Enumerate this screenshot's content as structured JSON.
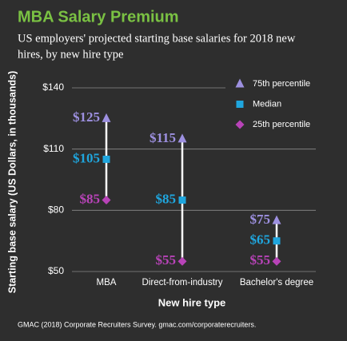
{
  "chart_data": {
    "type": "range-dot",
    "title": "MBA Salary Premium",
    "subtitle": [
      "US employers' projected starting base salaries for 2018 new",
      "hires, by new hire type"
    ],
    "x_label": "New hire type",
    "y_label": "Starting base salary (US Dollars, in thousands)",
    "source": "GMAC (2018) Corporate Recruiters Survey. gmac.com/corporaterecruiters.",
    "categories": [
      "MBA",
      "Direct-from-industry",
      "Bachelor's degree"
    ],
    "series": [
      {
        "name": "75th percentile",
        "color": "#9d90e0",
        "marker": "triangle",
        "values": [
          125,
          115,
          75
        ],
        "value_labels": [
          "$125",
          "$115",
          "$75"
        ]
      },
      {
        "name": "Median",
        "color": "#1fa6de",
        "marker": "square",
        "values": [
          105,
          85,
          65
        ],
        "value_labels": [
          "$105",
          "$85",
          "$65"
        ]
      },
      {
        "name": "25th percentile",
        "color": "#b843b8",
        "marker": "diamond",
        "values": [
          85,
          55,
          55
        ],
        "value_labels": [
          "$85",
          "$55",
          "$55"
        ]
      }
    ],
    "ylim": [
      50,
      140
    ],
    "yticks": [
      {
        "value": 50,
        "label": "$50"
      },
      {
        "value": 80,
        "label": "$80"
      },
      {
        "value": 110,
        "label": "$110"
      },
      {
        "value": 140,
        "label": "$140"
      }
    ],
    "grid": true,
    "legend": "top-right"
  }
}
